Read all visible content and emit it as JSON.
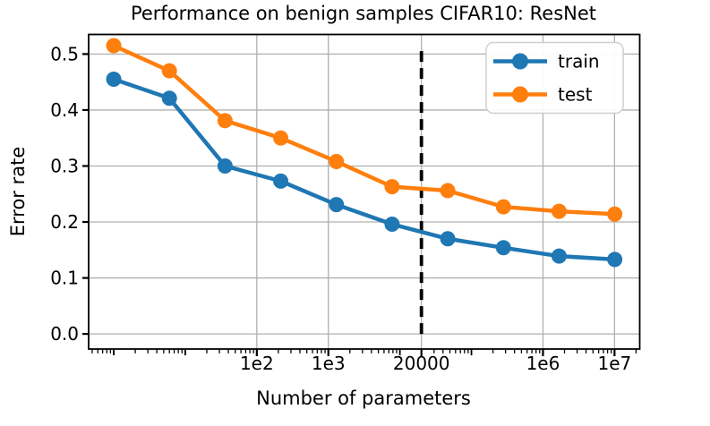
{
  "chart_data": {
    "type": "line",
    "title": "Performance on benign samples CIFAR10: ResNet",
    "xlabel": "Number of parameters",
    "ylabel": "Error rate",
    "xscale": "log",
    "grid": true,
    "legend_position": "upper right",
    "x": [
      1,
      6,
      36,
      216,
      1296,
      7776,
      46656,
      279936,
      1679616,
      10077696
    ],
    "series": [
      {
        "name": "train",
        "color": "#1f77b4",
        "values": [
          0.455,
          0.421,
          0.3,
          0.273,
          0.231,
          0.196,
          0.17,
          0.154,
          0.139,
          0.133
        ]
      },
      {
        "name": "test",
        "color": "#ff7f0e",
        "values": [
          0.515,
          0.47,
          0.381,
          0.35,
          0.308,
          0.263,
          0.256,
          0.227,
          0.219,
          0.214
        ]
      }
    ],
    "xticks": [
      {
        "value": 100,
        "label": "1e2"
      },
      {
        "value": 1000,
        "label": "1e3"
      },
      {
        "value": 20000,
        "label": "20000"
      },
      {
        "value": 1000000,
        "label": "1e6"
      },
      {
        "value": 10000000,
        "label": "1e7"
      }
    ],
    "yticks": [
      {
        "value": 0.0,
        "label": "0.0"
      },
      {
        "value": 0.1,
        "label": "0.1"
      },
      {
        "value": 0.2,
        "label": "0.2"
      },
      {
        "value": 0.3,
        "label": "0.3"
      },
      {
        "value": 0.4,
        "label": "0.4"
      },
      {
        "value": 0.5,
        "label": "0.5"
      }
    ],
    "xlim": [
      0.446,
      22500000
    ],
    "ylim": [
      -0.027,
      0.535
    ],
    "vline": {
      "x": 20000,
      "y_from": 0.0,
      "y_to": 0.513,
      "style": "dashed",
      "color": "#000000"
    }
  },
  "colors": {
    "background": "#ffffff",
    "grid": "#b0b0b0",
    "spine": "#000000",
    "legend_border": "#cfcfcf",
    "train": "#1f77b4",
    "test": "#ff7f0e"
  }
}
